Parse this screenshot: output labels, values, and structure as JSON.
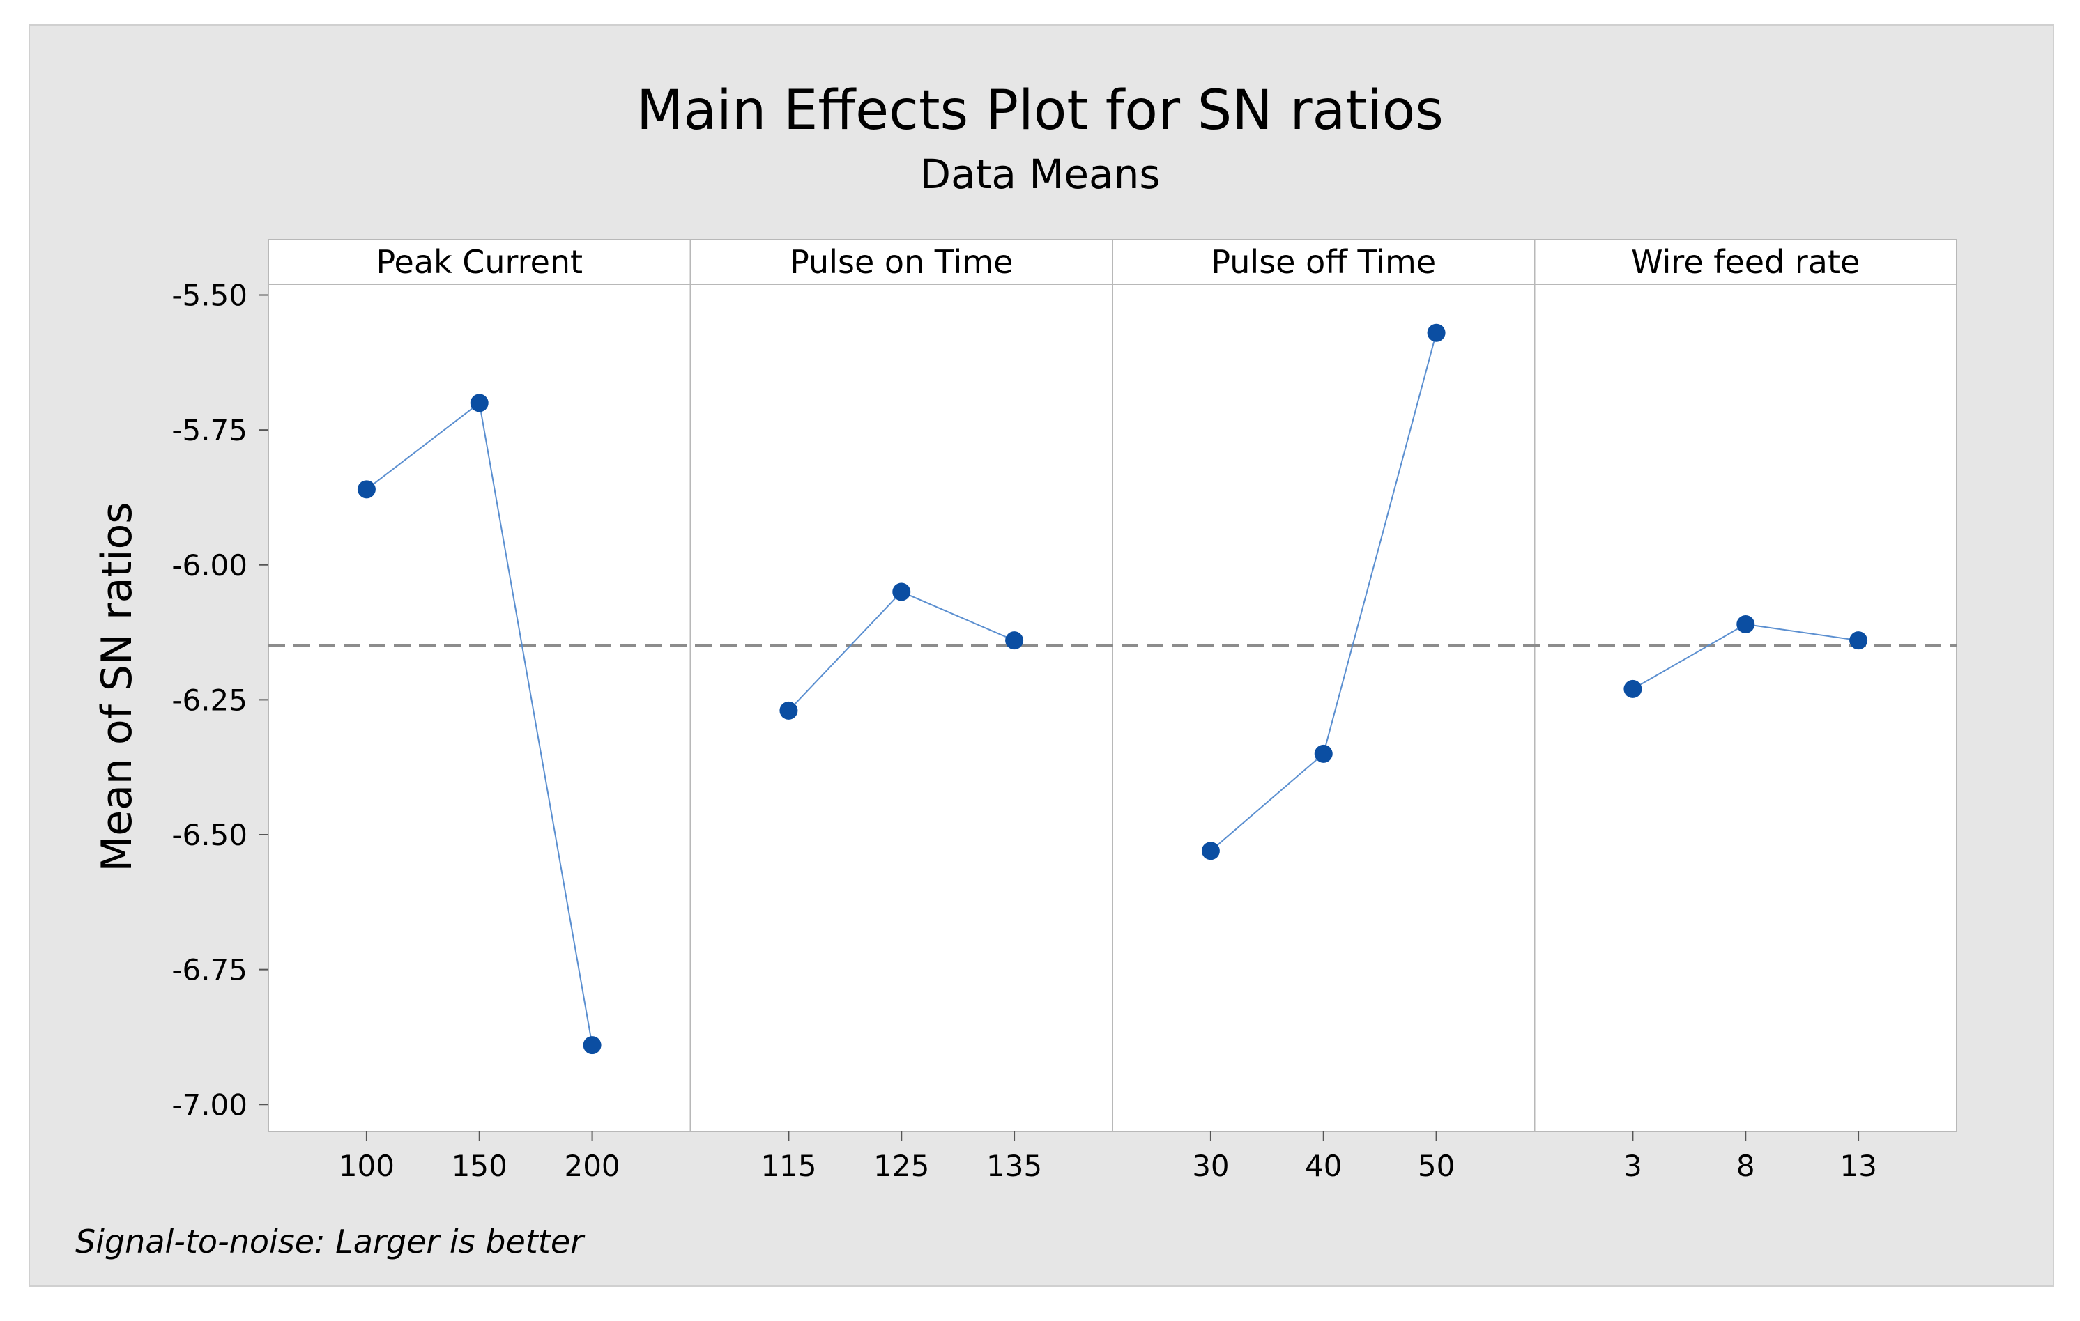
{
  "chart_data": {
    "type": "line",
    "title": "Main Effects Plot for SN ratios",
    "subtitle": "Data Means",
    "ylabel": "Mean of SN ratios",
    "ylim": [
      -7.05,
      -5.48
    ],
    "yticks": [
      "-5.50",
      "-5.75",
      "-6.00",
      "-6.25",
      "-6.50",
      "-6.75",
      "-7.00"
    ],
    "ytick_values": [
      -5.5,
      -5.75,
      -6.0,
      -6.25,
      -6.5,
      -6.75,
      -7.0
    ],
    "grand_mean": -6.15,
    "reference_line": "dashed",
    "marker_color": "#0b4ea2",
    "line_color": "#5b8fd0",
    "ref_line_color": "#8c8c8c",
    "background_color": "#e6e6e6",
    "footnote": "Signal-to-noise: Larger is better",
    "panels": [
      {
        "name": "Peak Current",
        "categories": [
          "100",
          "150",
          "200"
        ],
        "values": [
          -5.86,
          -5.7,
          -6.89
        ]
      },
      {
        "name": "Pulse on Time",
        "categories": [
          "115",
          "125",
          "135"
        ],
        "values": [
          -6.27,
          -6.05,
          -6.14
        ]
      },
      {
        "name": "Pulse off Time",
        "categories": [
          "30",
          "40",
          "50"
        ],
        "values": [
          -6.53,
          -6.35,
          -5.57
        ]
      },
      {
        "name": "Wire feed rate",
        "categories": [
          "3",
          "8",
          "13"
        ],
        "values": [
          -6.23,
          -6.11,
          -6.14
        ]
      }
    ]
  }
}
